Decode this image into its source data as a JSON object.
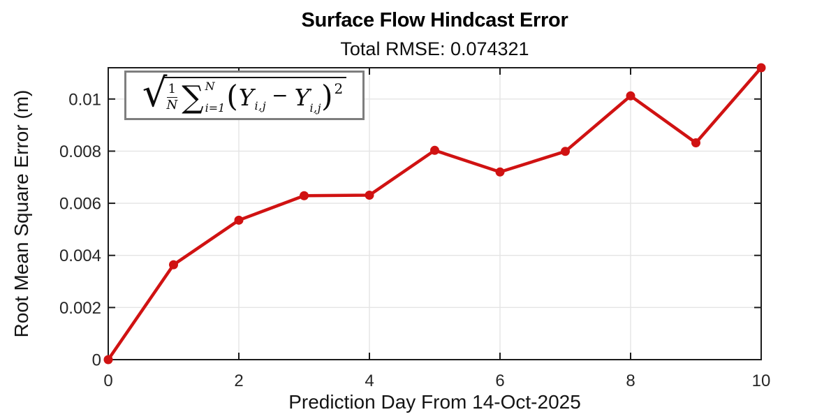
{
  "chart_data": {
    "type": "line",
    "title": "Surface Flow Hindcast Error",
    "subtitle": "Total RMSE: 0.074321",
    "xlabel": "Prediction Day From 14-Oct-2025",
    "ylabel": "Root Mean Square Error (m)",
    "x": [
      0,
      1,
      2,
      3,
      4,
      5,
      6,
      7,
      8,
      9,
      10
    ],
    "y": [
      0,
      0.00364,
      0.00535,
      0.00629,
      0.00631,
      0.00803,
      0.0072,
      0.00799,
      0.01012,
      0.00832,
      0.0112
    ],
    "xlim": [
      0,
      10
    ],
    "ylim": [
      0,
      0.0112
    ],
    "xticks": {
      "values": [
        0,
        2,
        4,
        6,
        8,
        10
      ],
      "labels": [
        "0",
        "2",
        "4",
        "6",
        "8",
        "10"
      ]
    },
    "yticks": {
      "values": [
        0,
        0.002,
        0.004,
        0.006,
        0.008,
        0.01
      ],
      "labels": [
        "0",
        "0.002",
        "0.004",
        "0.006",
        "0.008",
        "0.01"
      ]
    },
    "grid": true,
    "legend": "none",
    "marker": "filled-circle",
    "line_color": "#d01212",
    "colors": {
      "grid": "#e4e4e4",
      "axis": "#1b1b1b",
      "tick_label": "#262626",
      "background": "#ffffff",
      "formula_border": "#7e7e7e"
    },
    "annotation_formula_meaning": "sqrt( (1/N) * sum_{i=1}^{N} (Y_ij - Y'_ij)^2 )"
  },
  "formula": {
    "radical": "√",
    "frac_num": "1",
    "frac_den": "N",
    "sum": "∑",
    "sum_sup": "N",
    "sum_sub": "i=1",
    "open_paren": "(",
    "y1": "Y",
    "y1_sub": "i,j",
    "minus": "−",
    "y2": "Y",
    "y2_prime": "′",
    "y2_sub": "i,j",
    "close_paren": ")",
    "exponent": "2"
  }
}
